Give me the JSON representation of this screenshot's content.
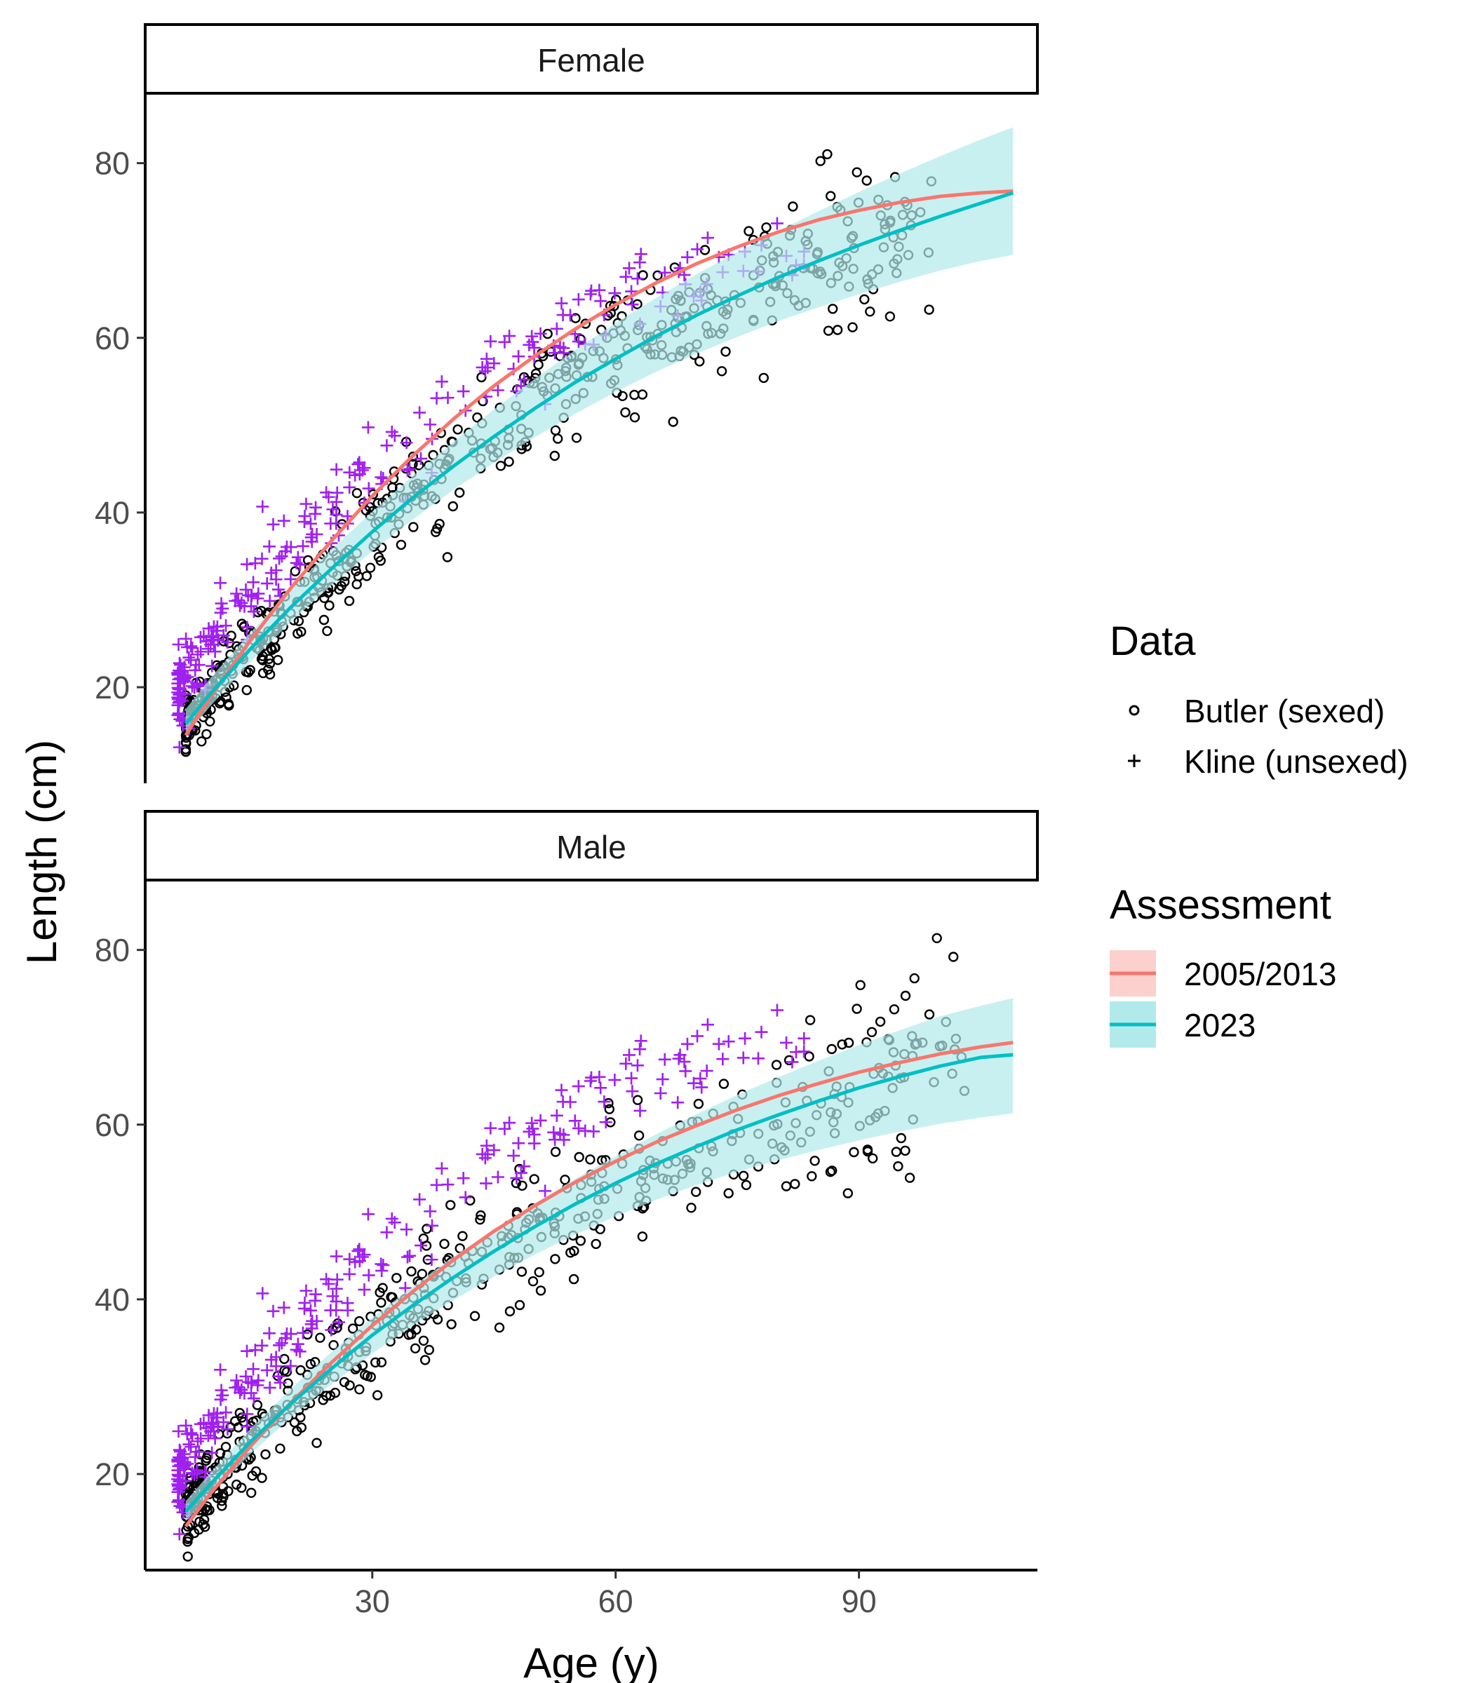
{
  "chart_data": {
    "type": "scatter",
    "xlabel": "Age (y)",
    "ylabel": "Length (cm)",
    "xlim": [
      2,
      112
    ],
    "ylim": [
      9,
      88
    ],
    "x_ticks": [
      30,
      60,
      90
    ],
    "y_ticks": [
      20,
      40,
      60,
      80
    ],
    "grid": false,
    "legend_position": "right",
    "colors": {
      "butler": "#000000",
      "kline": "#a020f0",
      "assessment_2005_2013": "#f8766d",
      "assessment_2023": "#00bfc4",
      "assessment_2005_2013_fill": "#fbd0cd",
      "assessment_2023_fill": "#b2eaeb"
    },
    "legends": {
      "data": {
        "title": "Data",
        "items": [
          {
            "label": "Butler (sexed)",
            "shape": "circle"
          },
          {
            "label": "Kline (unsexed)",
            "shape": "plus"
          }
        ]
      },
      "assessment": {
        "title": "Assessment",
        "items": [
          {
            "label": "2005/2013",
            "color": "#f8766d"
          },
          {
            "label": "2023",
            "color": "#00bfc4"
          }
        ]
      }
    },
    "panels": [
      {
        "strip": "Female",
        "series": [
          {
            "name": "2005/2013",
            "x": [
              7,
              10,
              15,
              20,
              25,
              30,
              35,
              40,
              45,
              50,
              55,
              60,
              65,
              70,
              75,
              80,
              85,
              90,
              95,
              100,
              105,
              109
            ],
            "y": [
              14.5,
              18.8,
              25.4,
              31.4,
              36.8,
              41.9,
              46.5,
              50.7,
              54.5,
              57.9,
              61.0,
              63.8,
              66.3,
              68.5,
              70.4,
              72.1,
              73.5,
              74.6,
              75.5,
              76.2,
              76.6,
              76.8
            ]
          },
          {
            "name": "2023",
            "x": [
              7,
              10,
              15,
              20,
              25,
              30,
              35,
              40,
              45,
              50,
              55,
              60,
              65,
              70,
              75,
              80,
              85,
              90,
              95,
              100,
              105,
              109
            ],
            "y": [
              15.8,
              19.2,
              24.4,
              29.2,
              33.6,
              37.8,
              41.7,
              45.3,
              48.7,
              51.9,
              54.9,
              57.6,
              60.2,
              62.6,
              64.8,
              66.9,
              68.8,
              70.6,
              72.3,
              73.9,
              75.4,
              76.6
            ],
            "lower": [
              14.5,
              17.8,
              22.9,
              27.5,
              31.7,
              35.6,
              39.2,
              42.6,
              45.7,
              48.6,
              51.3,
              53.8,
              56.1,
              58.2,
              60.1,
              61.9,
              63.5,
              65.0,
              66.4,
              67.7,
              68.8,
              69.5
            ],
            "upper": [
              17.5,
              21.0,
              26.3,
              31.2,
              35.8,
              40.1,
              44.2,
              48.1,
              51.8,
              55.3,
              58.6,
              61.7,
              64.6,
              67.3,
              69.8,
              72.2,
              74.5,
              76.7,
              78.8,
              80.8,
              82.7,
              84.1
            ]
          }
        ]
      },
      {
        "strip": "Male",
        "series": [
          {
            "name": "2005/2013",
            "x": [
              7,
              10,
              15,
              20,
              25,
              30,
              35,
              40,
              45,
              50,
              55,
              60,
              65,
              70,
              75,
              80,
              85,
              90,
              95,
              100,
              105,
              109
            ],
            "y": [
              14.0,
              17.7,
              23.2,
              28.2,
              32.8,
              37.0,
              40.9,
              44.5,
              47.8,
              50.7,
              53.4,
              55.8,
              58.0,
              59.9,
              61.7,
              63.3,
              64.7,
              66.0,
              67.1,
              68.1,
              68.9,
              69.4
            ]
          },
          {
            "name": "2023",
            "x": [
              7,
              10,
              15,
              20,
              25,
              30,
              35,
              40,
              45,
              50,
              55,
              60,
              65,
              70,
              75,
              80,
              85,
              90,
              95,
              100,
              105,
              109
            ],
            "y": [
              15.7,
              18.8,
              23.7,
              28.1,
              32.1,
              35.9,
              39.3,
              42.5,
              45.5,
              48.3,
              50.9,
              53.3,
              55.5,
              57.5,
              59.4,
              61.1,
              62.7,
              64.2,
              65.5,
              66.7,
              67.7,
              68.0
            ],
            "lower": [
              14.6,
              17.6,
              22.3,
              26.5,
              30.3,
              33.8,
              37.0,
              39.9,
              42.6,
              45.1,
              47.4,
              49.5,
              51.4,
              53.1,
              54.6,
              55.9,
              57.1,
              58.2,
              59.2,
              60.1,
              60.8,
              61.3
            ],
            "upper": [
              16.9,
              20.1,
              25.2,
              29.8,
              34.0,
              37.9,
              41.5,
              44.9,
              48.0,
              51.0,
              53.8,
              56.4,
              58.9,
              61.2,
              63.4,
              65.4,
              67.3,
              69.1,
              70.8,
              72.4,
              73.6,
              74.5
            ]
          }
        ]
      }
    ]
  }
}
